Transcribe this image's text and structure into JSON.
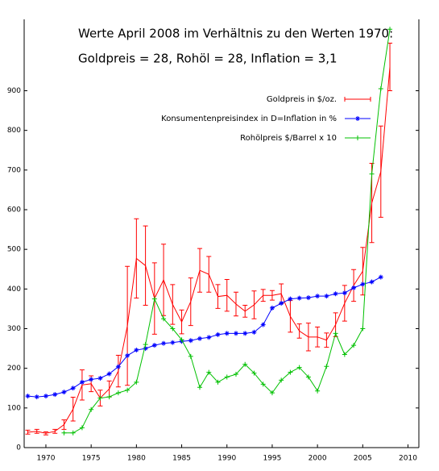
{
  "chart_data": {
    "type": "line",
    "title": "Werte April 2008 im Verhältnis zu den Werten 1970:",
    "subtitle": "Goldpreis = 28,  Rohöl = 28, Inflation = 3,1",
    "xlim": [
      1967.6,
      2011.2
    ],
    "ylim": [
      0,
      1080
    ],
    "xticks": [
      1970,
      1975,
      1980,
      1985,
      1990,
      1995,
      2000,
      2005,
      2010
    ],
    "yticks": [
      0,
      100,
      200,
      300,
      400,
      500,
      600,
      700,
      800,
      900
    ],
    "legend": "top-right",
    "series": [
      {
        "name": "Goldpreis in $/oz.",
        "color": "#ff0000",
        "x": [
          1968,
          1969,
          1970,
          1971,
          1972,
          1973,
          1974,
          1975,
          1976,
          1977,
          1978,
          1979,
          1980,
          1981,
          1982,
          1983,
          1984,
          1985,
          1986,
          1987,
          1988,
          1989,
          1990,
          1991,
          1992,
          1993,
          1994,
          1995,
          1996,
          1997,
          1998,
          1999,
          2000,
          2001,
          2002,
          2003,
          2004,
          2005,
          2006,
          2007,
          2008
        ],
        "values": [
          39,
          41,
          36,
          41,
          58,
          97,
          158,
          161,
          125,
          148,
          193,
          307,
          477,
          459,
          376,
          423,
          361,
          317,
          368,
          447,
          437,
          381,
          384,
          362,
          344,
          360,
          384,
          384,
          388,
          331,
          294,
          279,
          279,
          271,
          310,
          364,
          409,
          445,
          617,
          696,
          960
        ],
        "errors": [
          5,
          5,
          4,
          5,
          12,
          30,
          38,
          20,
          20,
          20,
          40,
          150,
          100,
          100,
          90,
          90,
          50,
          30,
          60,
          55,
          45,
          30,
          40,
          30,
          15,
          35,
          15,
          12,
          25,
          40,
          18,
          35,
          25,
          18,
          30,
          45,
          40,
          60,
          100,
          115,
          60
        ]
      },
      {
        "name": "Konsumentenpreisindex in D=Inflation in %",
        "color": "#0000ff",
        "x": [
          1968,
          1969,
          1970,
          1971,
          1972,
          1973,
          1974,
          1975,
          1976,
          1977,
          1978,
          1979,
          1980,
          1981,
          1982,
          1983,
          1984,
          1985,
          1986,
          1987,
          1988,
          1989,
          1990,
          1991,
          1992,
          1993,
          1994,
          1995,
          1996,
          1997,
          1998,
          1999,
          2000,
          2001,
          2002,
          2003,
          2004,
          2005,
          2006,
          2007
        ],
        "values": [
          130,
          128,
          130,
          134,
          140,
          150,
          165,
          172,
          175,
          186,
          204,
          232,
          246,
          250,
          258,
          263,
          265,
          268,
          270,
          275,
          278,
          285,
          288,
          288,
          288,
          291,
          310,
          352,
          364,
          375,
          377,
          378,
          382,
          382,
          388,
          390,
          403,
          412,
          418,
          430
        ]
      },
      {
        "name": "Rohölpreis $/Barrel x 10",
        "color": "#00c000",
        "x": [
          1972,
          1973,
          1974,
          1975,
          1976,
          1977,
          1978,
          1979,
          1980,
          1981,
          1982,
          1983,
          1984,
          1985,
          1986,
          1987,
          1988,
          1989,
          1990,
          1991,
          1992,
          1993,
          1994,
          1995,
          1996,
          1997,
          1998,
          1999,
          2000,
          2001,
          2002,
          2003,
          2004,
          2005,
          2006,
          2007,
          2008
        ],
        "values": [
          37,
          37,
          50,
          96,
          125,
          128,
          138,
          145,
          165,
          260,
          375,
          325,
          300,
          272,
          230,
          152,
          190,
          165,
          178,
          185,
          210,
          188,
          160,
          138,
          170,
          190,
          202,
          178,
          143,
          205,
          288,
          235,
          258,
          300,
          690,
          905,
          1055
        ]
      }
    ]
  }
}
